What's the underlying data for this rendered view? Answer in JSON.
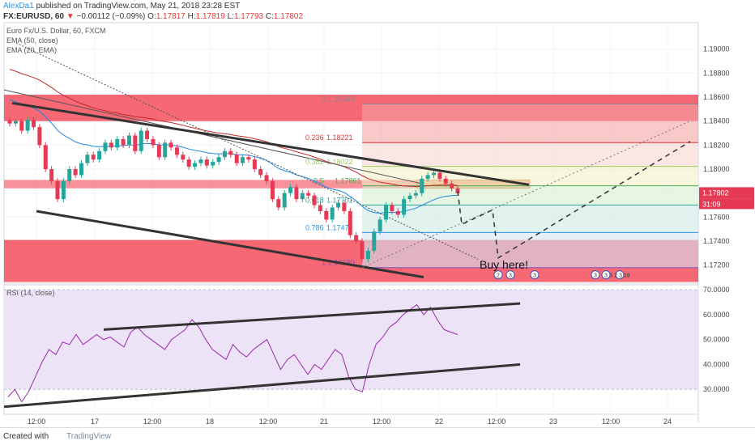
{
  "header": {
    "author": "AlexDa1",
    "published": "published on TradingView.com, May 21, 2018 23:28 EST",
    "symbol": "FX:EURUSD, 60",
    "change_arrow": "▼",
    "change": "−0.00112 (−0.09%)",
    "o_label": "O:",
    "o": "1.17817",
    "h_label": "H:",
    "h": "1.17819",
    "l_label": "L:",
    "l": "1.17793",
    "c_label": "C:",
    "c": "1.17802"
  },
  "legend": {
    "title": "Euro Fx/U.S. Dollar, 60, FXCM",
    "ema50": "EMA (50, close)",
    "ema20": "EMA (20, EMA)",
    "rsi": "RSI (14, close)"
  },
  "annotation": {
    "text": "Buy here!"
  },
  "price_label": {
    "value": "1.17802",
    "timer": "31:09"
  },
  "events": {
    "e1": "2",
    "e2": "3",
    "e3": "3",
    "e4": "3",
    "e5": "3",
    "e6": "5 2 3 18"
  },
  "footer": {
    "created": "Created with",
    "brand": "TradingView"
  },
  "colors": {
    "bull": "#26a69a",
    "bear": "#e53955",
    "zone": "#f23645",
    "rsi_line": "#9c27b0",
    "rsi_band": "#ede3f7",
    "accent": "#2196f3"
  },
  "chart_data": [
    {
      "type": "candlestick",
      "title": "Euro Fx/U.S. Dollar, 60, FXCM",
      "ylim": [
        1.1705,
        1.1922
      ],
      "y_ticks": [
        "1.19000",
        "1.18800",
        "1.18600",
        "1.18400",
        "1.18200",
        "1.18000",
        "1.17800",
        "1.17600",
        "1.17400",
        "1.17200"
      ],
      "x_ticks": [
        "12:00",
        "17",
        "12:00",
        "18",
        "12:00",
        "21",
        "12:00",
        "22",
        "12:00",
        "23",
        "12:00",
        "24"
      ],
      "fibonacci": [
        {
          "level": "0",
          "price": "1.18543"
        },
        {
          "level": "0.236",
          "price": "1.18221"
        },
        {
          "level": "0.382",
          "price": "1.18022"
        },
        {
          "level": "0.5",
          "price": "1.17861"
        },
        {
          "level": "0.618",
          "price": "1.17701"
        },
        {
          "level": "0.786",
          "price": "1.17472"
        },
        {
          "level": "1",
          "price": "1.17180"
        }
      ],
      "close_series": [
        1.1838,
        1.184,
        1.1832,
        1.1841,
        1.1835,
        1.182,
        1.18,
        1.179,
        1.1775,
        1.179,
        1.18,
        1.1795,
        1.1805,
        1.1812,
        1.1808,
        1.1815,
        1.1822,
        1.1818,
        1.1825,
        1.182,
        1.1828,
        1.1815,
        1.1832,
        1.1825,
        1.182,
        1.181,
        1.1822,
        1.1818,
        1.1812,
        1.1808,
        1.1802,
        1.1805,
        1.1808,
        1.1803,
        1.1806,
        1.181,
        1.1815,
        1.1812,
        1.1805,
        1.181,
        1.1808,
        1.18,
        1.1795,
        1.179,
        1.1775,
        1.1768,
        1.178,
        1.1785,
        1.1775,
        1.178,
        1.1778,
        1.177,
        1.1765,
        1.1758,
        1.1768,
        1.1772,
        1.1765,
        1.1745,
        1.174,
        1.1725,
        1.1732,
        1.1748,
        1.1758,
        1.177,
        1.1765,
        1.1762,
        1.1775,
        1.1778,
        1.178,
        1.1792,
        1.1795,
        1.1797,
        1.1792,
        1.1788,
        1.1784,
        1.178
      ]
    },
    {
      "type": "line",
      "title": "RSI (14, close)",
      "ylim": [
        20,
        72
      ],
      "y_ticks": [
        "70.0000",
        "60.0000",
        "50.0000",
        "40.0000",
        "30.0000"
      ],
      "series": [
        {
          "name": "RSI (14, close)",
          "values": [
            27,
            30,
            25,
            29,
            35,
            41,
            46,
            44,
            49,
            48,
            52,
            48,
            50,
            52,
            50,
            51,
            49,
            47,
            53,
            55,
            52,
            50,
            48,
            46,
            50,
            52,
            54,
            58,
            55,
            50,
            46,
            44,
            42,
            48,
            45,
            43,
            46,
            48,
            50,
            44,
            38,
            42,
            44,
            40,
            36,
            40,
            38,
            42,
            46,
            44,
            35,
            30,
            29,
            40,
            48,
            51,
            55,
            57,
            60,
            62,
            64,
            60,
            63,
            58,
            54,
            53,
            52
          ]
        }
      ]
    }
  ]
}
